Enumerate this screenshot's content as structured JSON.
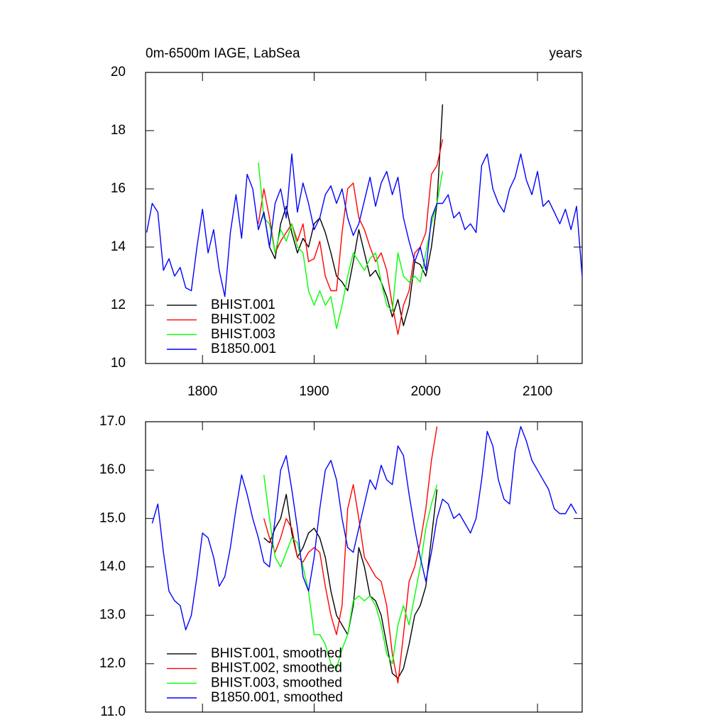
{
  "chart_data": [
    {
      "type": "line",
      "title": "0m-6500m IAGE, LabSea",
      "right_title": "years",
      "xlim": [
        1749,
        2140
      ],
      "xticks": [
        1800,
        1900,
        2000,
        2100
      ],
      "show_xtick_labels": true,
      "ylim": [
        10,
        20
      ],
      "yticks": [
        10,
        12,
        14,
        16,
        18,
        20
      ],
      "legend": "lower left",
      "series": [
        {
          "name": "BHIST.001",
          "color": "#000000",
          "x": [
            1850,
            1855,
            1860,
            1865,
            1870,
            1875,
            1880,
            1885,
            1890,
            1895,
            1900,
            1905,
            1910,
            1915,
            1920,
            1925,
            1930,
            1935,
            1940,
            1945,
            1950,
            1955,
            1960,
            1965,
            1970,
            1975,
            1980,
            1985,
            1990,
            1995,
            2000,
            2005,
            2010,
            2015
          ],
          "values": [
            14.6,
            15.2,
            14.0,
            13.6,
            14.8,
            15.4,
            14.5,
            13.8,
            14.3,
            14.0,
            14.8,
            15.0,
            14.5,
            13.8,
            13.0,
            12.8,
            12.5,
            13.5,
            14.6,
            13.8,
            13.0,
            13.2,
            12.8,
            12.3,
            11.6,
            12.2,
            11.3,
            12.0,
            13.5,
            13.4,
            13.0,
            14.0,
            15.5,
            18.9
          ]
        },
        {
          "name": "BHIST.002",
          "color": "#ff0000",
          "x": [
            1850,
            1855,
            1860,
            1865,
            1870,
            1875,
            1880,
            1885,
            1890,
            1895,
            1900,
            1905,
            1910,
            1915,
            1920,
            1925,
            1930,
            1935,
            1940,
            1945,
            1950,
            1955,
            1960,
            1965,
            1970,
            1975,
            1980,
            1985,
            1990,
            1995,
            2000,
            2005,
            2010,
            2015
          ],
          "values": [
            14.8,
            16.0,
            15.0,
            13.8,
            14.2,
            14.5,
            14.8,
            14.2,
            14.8,
            13.5,
            13.6,
            14.2,
            13.0,
            12.5,
            12.5,
            14.5,
            16.0,
            16.2,
            15.0,
            14.6,
            14.0,
            13.5,
            13.8,
            13.2,
            12.0,
            11.0,
            12.0,
            12.5,
            13.8,
            14.0,
            14.5,
            16.5,
            16.8,
            17.7
          ]
        },
        {
          "name": "BHIST.003",
          "color": "#00ff00",
          "x": [
            1850,
            1855,
            1860,
            1865,
            1870,
            1875,
            1880,
            1885,
            1890,
            1895,
            1900,
            1905,
            1910,
            1915,
            1920,
            1925,
            1930,
            1935,
            1940,
            1945,
            1950,
            1955,
            1960,
            1965,
            1970,
            1975,
            1980,
            1985,
            1990,
            1995,
            2000,
            2005,
            2010,
            2015
          ],
          "values": [
            16.9,
            15.0,
            14.8,
            13.8,
            14.6,
            14.2,
            14.8,
            14.0,
            13.8,
            12.5,
            12.0,
            12.5,
            12.0,
            12.3,
            11.2,
            12.0,
            13.0,
            13.8,
            13.5,
            13.2,
            13.6,
            13.8,
            12.8,
            12.0,
            11.8,
            13.8,
            13.0,
            12.8,
            13.0,
            12.8,
            13.8,
            14.8,
            15.5,
            16.6
          ]
        },
        {
          "name": "B1850.001",
          "color": "#0000ff",
          "x": [
            1750,
            1755,
            1760,
            1765,
            1770,
            1775,
            1780,
            1785,
            1790,
            1795,
            1800,
            1805,
            1810,
            1815,
            1820,
            1825,
            1830,
            1835,
            1840,
            1845,
            1850,
            1855,
            1860,
            1865,
            1870,
            1875,
            1880,
            1885,
            1890,
            1895,
            1900,
            1905,
            1910,
            1915,
            1920,
            1925,
            1930,
            1935,
            1940,
            1945,
            1950,
            1955,
            1960,
            1965,
            1970,
            1975,
            1980,
            1985,
            1990,
            1995,
            2000,
            2005,
            2010,
            2015,
            2020,
            2025,
            2030,
            2035,
            2040,
            2045,
            2050,
            2055,
            2060,
            2065,
            2070,
            2075,
            2080,
            2085,
            2090,
            2095,
            2100,
            2105,
            2110,
            2115,
            2120,
            2125,
            2130,
            2135,
            2140
          ],
          "values": [
            14.5,
            15.5,
            15.2,
            13.2,
            13.6,
            13.0,
            13.3,
            12.6,
            12.5,
            14.0,
            15.3,
            13.8,
            14.6,
            13.2,
            12.3,
            14.5,
            15.8,
            14.3,
            16.5,
            16.0,
            14.6,
            15.2,
            14.0,
            15.5,
            16.0,
            15.0,
            17.2,
            15.2,
            16.2,
            15.5,
            14.6,
            15.0,
            15.8,
            16.1,
            15.5,
            16.0,
            15.0,
            14.4,
            14.8,
            15.6,
            16.4,
            15.4,
            16.2,
            16.6,
            15.8,
            16.4,
            15.0,
            14.2,
            13.5,
            14.0,
            13.2,
            15.0,
            15.5,
            15.5,
            15.8,
            15.0,
            15.2,
            14.6,
            14.8,
            14.5,
            16.8,
            17.2,
            16.0,
            15.5,
            15.2,
            16.0,
            16.4,
            17.2,
            16.3,
            15.8,
            16.6,
            15.4,
            15.6,
            15.2,
            14.8,
            15.3,
            14.6,
            15.4,
            13.0
          ]
        }
      ]
    },
    {
      "type": "line",
      "xlim": [
        1749,
        2140
      ],
      "xticks": [
        1800,
        1900,
        2000,
        2100
      ],
      "show_xtick_labels": false,
      "ylim": [
        11,
        17
      ],
      "yticks": [
        {
          "value": 11,
          "label": "11.0"
        },
        {
          "value": 12,
          "label": "12.0"
        },
        {
          "value": 13,
          "label": "13.0"
        },
        {
          "value": 14,
          "label": "14.0"
        },
        {
          "value": 15,
          "label": "15.0"
        },
        {
          "value": 16,
          "label": "16.0"
        },
        {
          "value": 17,
          "label": "17.0"
        }
      ],
      "legend": "lower left",
      "series": [
        {
          "name": "BHIST.001, smoothed",
          "color": "#000000",
          "x": [
            1855,
            1860,
            1865,
            1870,
            1875,
            1880,
            1885,
            1890,
            1895,
            1900,
            1905,
            1910,
            1915,
            1920,
            1925,
            1930,
            1935,
            1940,
            1945,
            1950,
            1955,
            1960,
            1965,
            1970,
            1975,
            1980,
            1985,
            1990,
            1995,
            2000,
            2005,
            2010
          ],
          "values": [
            14.6,
            14.5,
            14.8,
            15.0,
            15.5,
            14.7,
            14.2,
            14.4,
            14.7,
            14.8,
            14.6,
            14.2,
            13.5,
            13.0,
            12.8,
            12.6,
            13.2,
            14.4,
            14.0,
            13.4,
            13.3,
            13.0,
            12.4,
            11.8,
            11.7,
            11.9,
            12.4,
            13.0,
            13.2,
            13.6,
            14.6,
            15.6
          ]
        },
        {
          "name": "BHIST.002, smoothed",
          "color": "#ff0000",
          "x": [
            1855,
            1860,
            1865,
            1870,
            1875,
            1880,
            1885,
            1890,
            1895,
            1900,
            1905,
            1910,
            1915,
            1920,
            1925,
            1930,
            1935,
            1940,
            1945,
            1950,
            1955,
            1960,
            1965,
            1970,
            1975,
            1980,
            1985,
            1990,
            1995,
            2000,
            2005,
            2010
          ],
          "values": [
            15.0,
            14.6,
            14.3,
            14.6,
            15.0,
            14.8,
            14.2,
            14.1,
            14.3,
            14.4,
            14.3,
            13.6,
            13.0,
            12.6,
            13.2,
            15.2,
            15.7,
            15.0,
            14.2,
            14.0,
            13.8,
            13.7,
            13.2,
            12.2,
            11.6,
            12.6,
            13.7,
            14.0,
            14.5,
            15.2,
            16.2,
            16.9
          ]
        },
        {
          "name": "BHIST.003, smoothed",
          "color": "#00ff00",
          "x": [
            1855,
            1860,
            1865,
            1870,
            1875,
            1880,
            1885,
            1890,
            1895,
            1900,
            1905,
            1910,
            1915,
            1920,
            1925,
            1930,
            1935,
            1940,
            1945,
            1950,
            1955,
            1960,
            1965,
            1970,
            1975,
            1980,
            1985,
            1990,
            1995,
            2000,
            2005,
            2010
          ],
          "values": [
            15.9,
            15.0,
            14.2,
            14.0,
            14.3,
            14.6,
            14.5,
            14.0,
            13.5,
            12.6,
            12.6,
            12.4,
            12.0,
            11.9,
            12.3,
            12.6,
            13.3,
            13.4,
            13.3,
            13.4,
            13.2,
            12.8,
            12.2,
            12.0,
            12.8,
            13.2,
            12.8,
            13.4,
            14.0,
            14.8,
            15.3,
            15.7
          ]
        },
        {
          "name": "B1850.001, smoothed",
          "color": "#0000ff",
          "x": [
            1755,
            1760,
            1765,
            1770,
            1775,
            1780,
            1785,
            1790,
            1795,
            1800,
            1805,
            1810,
            1815,
            1820,
            1825,
            1830,
            1835,
            1840,
            1845,
            1850,
            1855,
            1860,
            1865,
            1870,
            1875,
            1880,
            1885,
            1890,
            1895,
            1900,
            1905,
            1910,
            1915,
            1920,
            1925,
            1930,
            1935,
            1940,
            1945,
            1950,
            1955,
            1960,
            1965,
            1970,
            1975,
            1980,
            1985,
            1990,
            1995,
            2000,
            2005,
            2010,
            2015,
            2020,
            2025,
            2030,
            2035,
            2040,
            2045,
            2050,
            2055,
            2060,
            2065,
            2070,
            2075,
            2080,
            2085,
            2090,
            2095,
            2100,
            2105,
            2110,
            2115,
            2120,
            2125,
            2130,
            2135
          ],
          "values": [
            14.9,
            15.3,
            14.3,
            13.5,
            13.3,
            13.2,
            12.7,
            13.0,
            13.8,
            14.7,
            14.6,
            14.2,
            13.6,
            13.8,
            14.4,
            15.2,
            15.9,
            15.5,
            15.0,
            14.6,
            14.1,
            14.0,
            15.0,
            16.0,
            16.3,
            15.6,
            14.8,
            13.8,
            13.5,
            14.2,
            15.2,
            16.0,
            16.2,
            15.8,
            15.0,
            14.4,
            14.3,
            14.8,
            15.3,
            15.8,
            15.6,
            16.1,
            15.8,
            15.7,
            16.5,
            16.3,
            15.5,
            14.8,
            14.2,
            13.7,
            14.3,
            15.0,
            15.4,
            15.3,
            15.0,
            15.1,
            14.9,
            14.7,
            15.0,
            15.8,
            16.8,
            16.5,
            15.8,
            15.4,
            15.3,
            16.4,
            16.9,
            16.6,
            16.2,
            16.0,
            15.8,
            15.6,
            15.2,
            15.1,
            15.1,
            15.3,
            15.1
          ]
        }
      ]
    }
  ]
}
